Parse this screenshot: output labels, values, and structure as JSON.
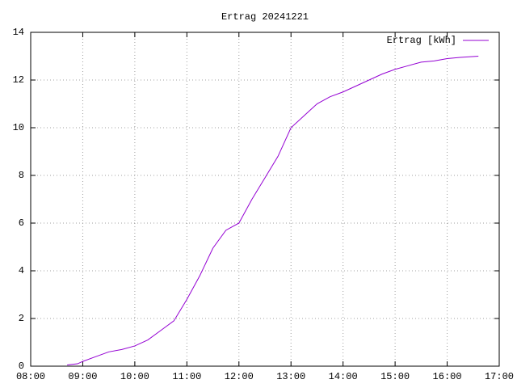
{
  "chart_data": {
    "type": "line",
    "title": "Ertrag 20241221",
    "x": [
      8.7,
      8.9,
      9.0,
      9.25,
      9.5,
      9.75,
      10.0,
      10.25,
      10.5,
      10.75,
      11.0,
      11.25,
      11.5,
      11.75,
      12.0,
      12.25,
      12.5,
      12.75,
      13.0,
      13.25,
      13.5,
      13.75,
      14.0,
      14.25,
      14.5,
      14.75,
      15.0,
      15.25,
      15.5,
      15.75,
      16.0,
      16.25,
      16.6
    ],
    "series": [
      {
        "name": "Ertrag [kWh]",
        "color": "#9400d3",
        "values": [
          0.05,
          0.1,
          0.2,
          0.4,
          0.6,
          0.7,
          0.85,
          1.1,
          1.5,
          1.9,
          2.8,
          3.8,
          4.95,
          5.7,
          6.0,
          7.0,
          7.9,
          8.8,
          10.0,
          10.5,
          11.0,
          11.3,
          11.5,
          11.75,
          12.0,
          12.25,
          12.45,
          12.6,
          12.75,
          12.8,
          12.9,
          12.95,
          13.0
        ]
      }
    ],
    "xlim": [
      8,
      17
    ],
    "xticks": [
      {
        "value": 8,
        "label": "08:00"
      },
      {
        "value": 9,
        "label": "09:00"
      },
      {
        "value": 10,
        "label": "10:00"
      },
      {
        "value": 11,
        "label": "11:00"
      },
      {
        "value": 12,
        "label": "12:00"
      },
      {
        "value": 13,
        "label": "13:00"
      },
      {
        "value": 14,
        "label": "14:00"
      },
      {
        "value": 15,
        "label": "15:00"
      },
      {
        "value": 16,
        "label": "16:00"
      },
      {
        "value": 17,
        "label": "17:00"
      }
    ],
    "ylim": [
      0,
      14
    ],
    "yticks": [
      0,
      2,
      4,
      6,
      8,
      10,
      12,
      14
    ],
    "grid": true,
    "legend": "top-right"
  }
}
